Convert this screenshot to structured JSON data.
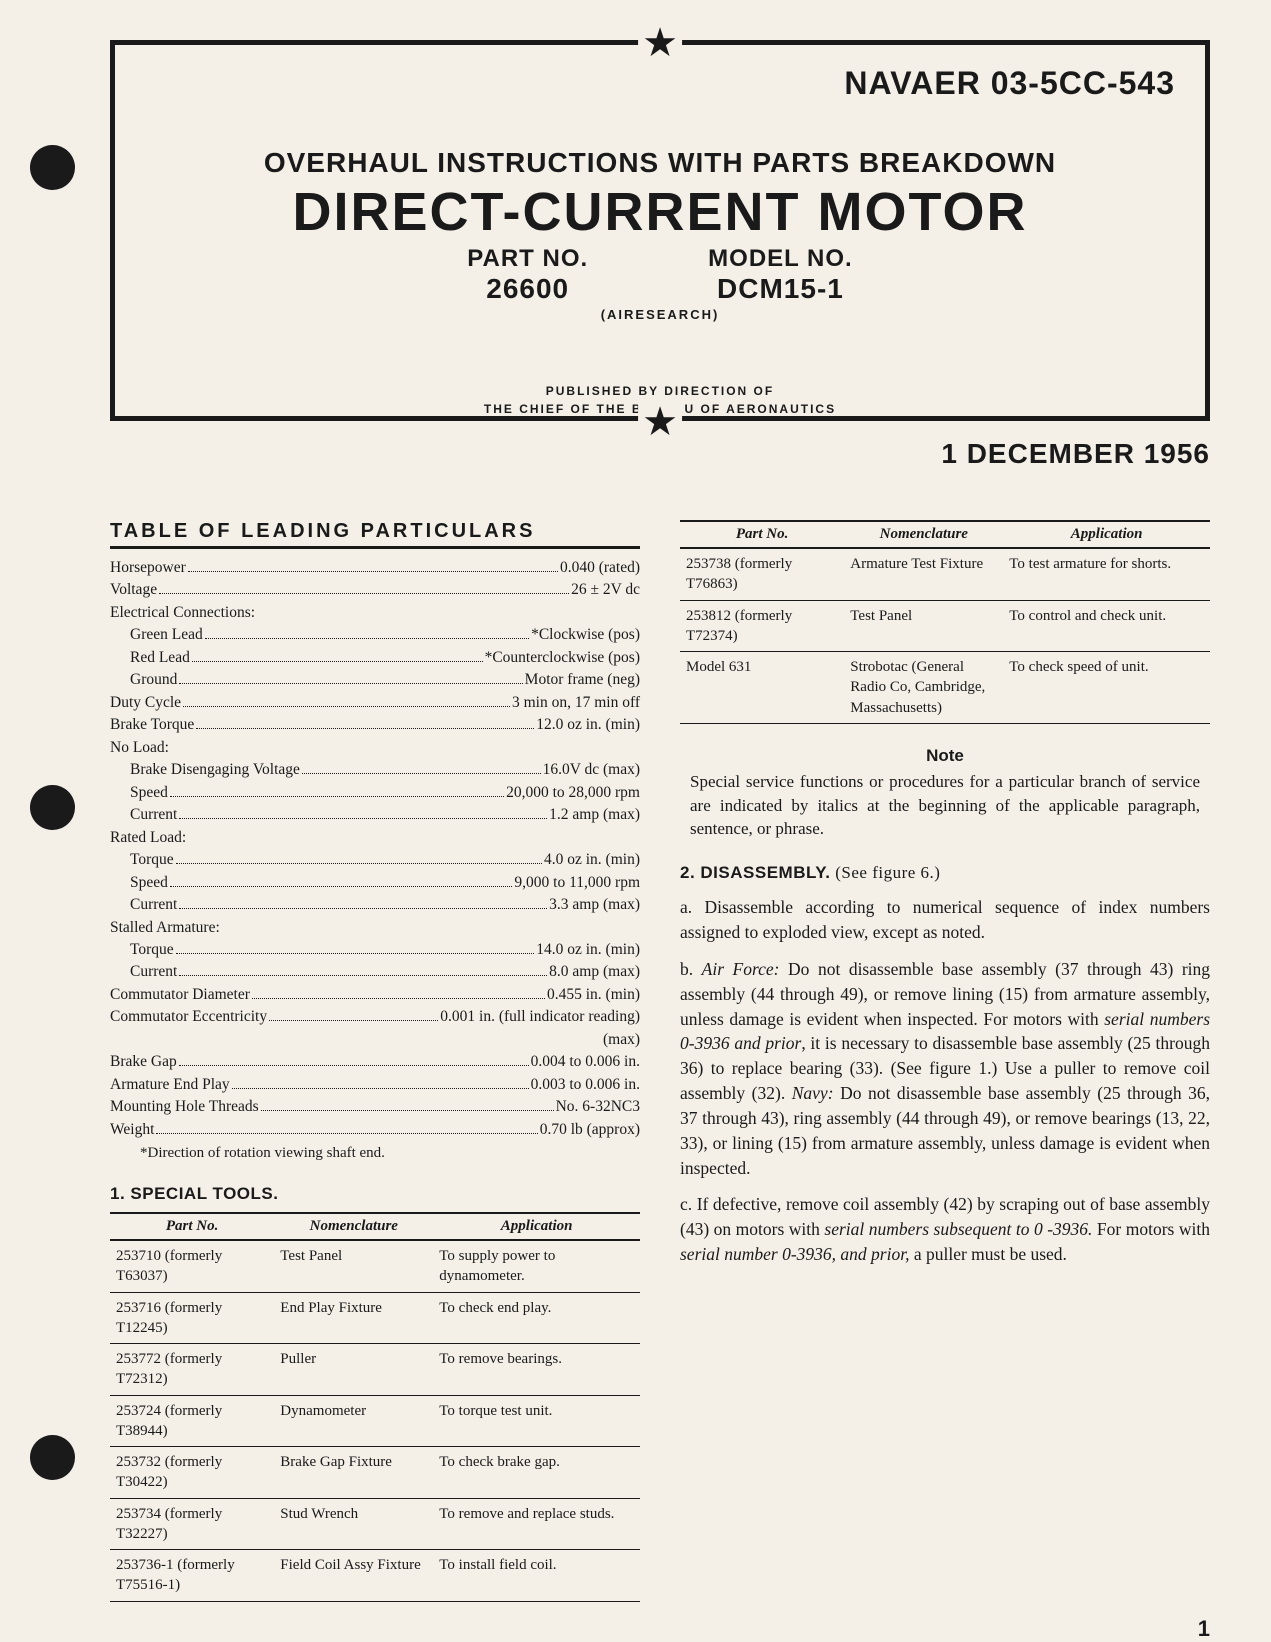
{
  "doc_id": "NAVAER 03-5CC-543",
  "overhaul_title": "OVERHAUL INSTRUCTIONS WITH PARTS BREAKDOWN",
  "main_title": "DIRECT-CURRENT MOTOR",
  "part_no_label": "PART NO.",
  "part_no": "26600",
  "model_no_label": "MODEL NO.",
  "model_no": "DCM15-1",
  "manufacturer": "(AIRESEARCH)",
  "published_line1": "PUBLISHED BY DIRECTION OF",
  "published_line2": "THE CHIEF OF THE BUREAU OF AERONAUTICS",
  "date": "1 DECEMBER 1956",
  "particulars": {
    "title": "TABLE OF LEADING PARTICULARS",
    "rows": [
      {
        "label": "Horsepower",
        "value": "0.040 (rated)",
        "indent": 0
      },
      {
        "label": "Voltage",
        "value": "26 ± 2V dc",
        "indent": 0
      },
      {
        "label": "Electrical Connections:",
        "value": "",
        "indent": 0,
        "header": true
      },
      {
        "label": "Green Lead",
        "value": "*Clockwise (pos)",
        "indent": 1
      },
      {
        "label": "Red Lead",
        "value": "*Counterclockwise (pos)",
        "indent": 1
      },
      {
        "label": "Ground",
        "value": "Motor frame (neg)",
        "indent": 1
      },
      {
        "label": "Duty Cycle",
        "value": "3 min on, 17 min off",
        "indent": 0
      },
      {
        "label": "Brake Torque",
        "value": "12.0 oz in. (min)",
        "indent": 0
      },
      {
        "label": "No Load:",
        "value": "",
        "indent": 0,
        "header": true
      },
      {
        "label": "Brake Disengaging Voltage",
        "value": "16.0V dc (max)",
        "indent": 1
      },
      {
        "label": "Speed",
        "value": "20,000 to 28,000 rpm",
        "indent": 1
      },
      {
        "label": "Current",
        "value": "1.2 amp (max)",
        "indent": 1
      },
      {
        "label": "Rated Load:",
        "value": "",
        "indent": 0,
        "header": true
      },
      {
        "label": "Torque",
        "value": "4.0 oz in. (min)",
        "indent": 1
      },
      {
        "label": "Speed",
        "value": "9,000 to 11,000 rpm",
        "indent": 1
      },
      {
        "label": "Current",
        "value": "3.3 amp (max)",
        "indent": 1
      },
      {
        "label": "Stalled Armature:",
        "value": "",
        "indent": 0,
        "header": true
      },
      {
        "label": "Torque",
        "value": "14.0 oz in. (min)",
        "indent": 1
      },
      {
        "label": "Current",
        "value": "8.0 amp (max)",
        "indent": 1
      },
      {
        "label": "Commutator Diameter",
        "value": "0.455 in. (min)",
        "indent": 0
      },
      {
        "label": "Commutator Eccentricity",
        "value": "0.001 in. (full indicator reading)",
        "indent": 0
      },
      {
        "label": "",
        "value": "(max)",
        "indent": 0,
        "rightonly": true
      },
      {
        "label": "Brake Gap",
        "value": "0.004 to 0.006 in.",
        "indent": 0
      },
      {
        "label": "Armature End Play",
        "value": "0.003 to 0.006 in.",
        "indent": 0
      },
      {
        "label": "Mounting Hole Threads",
        "value": "No. 6-32NC3",
        "indent": 0
      },
      {
        "label": "Weight",
        "value": "0.70 lb (approx)",
        "indent": 0
      }
    ],
    "footnote": "*Direction of rotation viewing shaft end."
  },
  "tools": {
    "section_label": "1. SPECIAL TOOLS.",
    "headers": {
      "part": "Part No.",
      "nom": "Nomenclature",
      "app": "Application"
    },
    "rows": [
      {
        "part": "253710 (formerly T63037)",
        "nom": "Test Panel",
        "app": "To supply power to dynamometer."
      },
      {
        "part": "253716 (formerly T12245)",
        "nom": "End Play Fixture",
        "app": "To check end play."
      },
      {
        "part": "253772 (formerly T72312)",
        "nom": "Puller",
        "app": "To remove bearings."
      },
      {
        "part": "253724 (formerly T38944)",
        "nom": "Dynamometer",
        "app": "To torque test unit."
      },
      {
        "part": "253732 (formerly T30422)",
        "nom": "Brake Gap Fixture",
        "app": "To check brake gap."
      },
      {
        "part": "253734 (formerly T32227)",
        "nom": "Stud Wrench",
        "app": "To remove and replace studs."
      },
      {
        "part": "253736-1 (formerly T75516-1)",
        "nom": "Field Coil Assy Fixture",
        "app": "To install field coil."
      }
    ]
  },
  "tools_cont": {
    "headers": {
      "part": "Part No.",
      "nom": "Nomenclature",
      "app": "Application"
    },
    "rows": [
      {
        "part": "253738 (formerly T76863)",
        "nom": "Armature Test Fixture",
        "app": "To test armature for shorts."
      },
      {
        "part": "253812 (formerly T72374)",
        "nom": "Test Panel",
        "app": "To control and check unit."
      },
      {
        "part": "Model 631",
        "nom": "Strobotac (General Radio Co, Cambridge, Massachusetts)",
        "app": "To check speed of unit."
      }
    ]
  },
  "note": {
    "head": "Note",
    "body": "Special service functions or procedures for a particular branch of service are indicated by italics at the beginning of the applicable paragraph, sentence, or phrase."
  },
  "disassembly": {
    "label": "2. DISASSEMBLY.",
    "see": " (See figure 6.)",
    "para_a": "a. Disassemble according to numerical sequence of index numbers assigned to exploded view, except as noted.",
    "para_b_pre": "b. ",
    "para_b_svc1": "Air Force:",
    "para_b_t1": " Do not disassemble base assembly (37 through 43) ring assembly (44 through 49), or remove lining (15) from armature assembly, unless damage is evident when inspected. For motors with ",
    "para_b_em1": "serial numbers 0-3936 and prior",
    "para_b_t2": ", it is necessary to disassemble base assembly (25 through 36) to replace bearing (33). (See figure 1.) Use a puller to remove coil assembly (32). ",
    "para_b_svc2": "Navy:",
    "para_b_t3": " Do not disassemble base assembly (25 through 36, 37 through 43), ring assembly (44 through 49), or remove bearings (13, 22, 33), or lining (15) from armature assembly, unless damage is evident when inspected.",
    "para_c_pre": "c. If defective, remove coil assembly (42) by scraping out of base assembly (43) on motors with ",
    "para_c_em1": "serial numbers subsequent to 0 -3936.",
    "para_c_t2": " For motors with ",
    "para_c_em2": "serial number 0-3936, and prior,",
    "para_c_t3": " a puller must be used."
  },
  "page_number": "1"
}
